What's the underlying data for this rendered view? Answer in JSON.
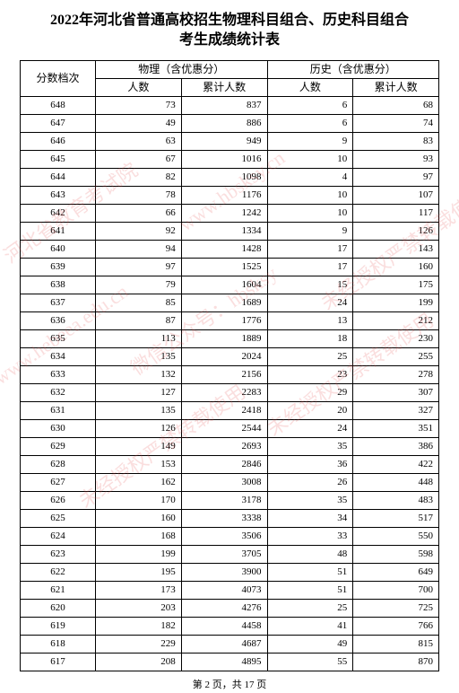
{
  "title_line1": "2022年河北省普通高校招生物理科目组合、历史科目组合",
  "title_line2": "考生成绩统计表",
  "headers": {
    "score": "分数档次",
    "physics": "物理（含优惠分）",
    "history": "历史（含优惠分）",
    "count": "人数",
    "cumulative": "累计人数"
  },
  "rows": [
    {
      "score": "648",
      "p_count": "73",
      "p_cum": "837",
      "h_count": "6",
      "h_cum": "68"
    },
    {
      "score": "647",
      "p_count": "49",
      "p_cum": "886",
      "h_count": "6",
      "h_cum": "74"
    },
    {
      "score": "646",
      "p_count": "63",
      "p_cum": "949",
      "h_count": "9",
      "h_cum": "83"
    },
    {
      "score": "645",
      "p_count": "67",
      "p_cum": "1016",
      "h_count": "10",
      "h_cum": "93"
    },
    {
      "score": "644",
      "p_count": "82",
      "p_cum": "1098",
      "h_count": "4",
      "h_cum": "97"
    },
    {
      "score": "643",
      "p_count": "78",
      "p_cum": "1176",
      "h_count": "10",
      "h_cum": "107"
    },
    {
      "score": "642",
      "p_count": "66",
      "p_cum": "1242",
      "h_count": "10",
      "h_cum": "117"
    },
    {
      "score": "641",
      "p_count": "92",
      "p_cum": "1334",
      "h_count": "9",
      "h_cum": "126"
    },
    {
      "score": "640",
      "p_count": "94",
      "p_cum": "1428",
      "h_count": "17",
      "h_cum": "143"
    },
    {
      "score": "639",
      "p_count": "97",
      "p_cum": "1525",
      "h_count": "17",
      "h_cum": "160"
    },
    {
      "score": "638",
      "p_count": "79",
      "p_cum": "1604",
      "h_count": "15",
      "h_cum": "175"
    },
    {
      "score": "637",
      "p_count": "85",
      "p_cum": "1689",
      "h_count": "24",
      "h_cum": "199"
    },
    {
      "score": "636",
      "p_count": "87",
      "p_cum": "1776",
      "h_count": "13",
      "h_cum": "212"
    },
    {
      "score": "635",
      "p_count": "113",
      "p_cum": "1889",
      "h_count": "18",
      "h_cum": "230"
    },
    {
      "score": "634",
      "p_count": "135",
      "p_cum": "2024",
      "h_count": "25",
      "h_cum": "255"
    },
    {
      "score": "633",
      "p_count": "132",
      "p_cum": "2156",
      "h_count": "23",
      "h_cum": "278"
    },
    {
      "score": "632",
      "p_count": "127",
      "p_cum": "2283",
      "h_count": "29",
      "h_cum": "307"
    },
    {
      "score": "631",
      "p_count": "135",
      "p_cum": "2418",
      "h_count": "20",
      "h_cum": "327"
    },
    {
      "score": "630",
      "p_count": "126",
      "p_cum": "2544",
      "h_count": "24",
      "h_cum": "351"
    },
    {
      "score": "629",
      "p_count": "149",
      "p_cum": "2693",
      "h_count": "35",
      "h_cum": "386"
    },
    {
      "score": "628",
      "p_count": "153",
      "p_cum": "2846",
      "h_count": "36",
      "h_cum": "422"
    },
    {
      "score": "627",
      "p_count": "162",
      "p_cum": "3008",
      "h_count": "26",
      "h_cum": "448"
    },
    {
      "score": "626",
      "p_count": "170",
      "p_cum": "3178",
      "h_count": "35",
      "h_cum": "483"
    },
    {
      "score": "625",
      "p_count": "160",
      "p_cum": "3338",
      "h_count": "34",
      "h_cum": "517"
    },
    {
      "score": "624",
      "p_count": "168",
      "p_cum": "3506",
      "h_count": "33",
      "h_cum": "550"
    },
    {
      "score": "623",
      "p_count": "199",
      "p_cum": "3705",
      "h_count": "48",
      "h_cum": "598"
    },
    {
      "score": "622",
      "p_count": "195",
      "p_cum": "3900",
      "h_count": "51",
      "h_cum": "649"
    },
    {
      "score": "621",
      "p_count": "173",
      "p_cum": "4073",
      "h_count": "51",
      "h_cum": "700"
    },
    {
      "score": "620",
      "p_count": "203",
      "p_cum": "4276",
      "h_count": "25",
      "h_cum": "725"
    },
    {
      "score": "619",
      "p_count": "182",
      "p_cum": "4458",
      "h_count": "41",
      "h_cum": "766"
    },
    {
      "score": "618",
      "p_count": "229",
      "p_cum": "4687",
      "h_count": "49",
      "h_cum": "815"
    },
    {
      "score": "617",
      "p_count": "208",
      "p_cum": "4895",
      "h_count": "55",
      "h_cum": "870"
    }
  ],
  "footer": "第 2 页，共 17 页",
  "watermarks": {
    "wm1": "河北省教育考试院",
    "wm2": "www.hebeea.edu.cn",
    "wm3": "www.hbsksy.cn",
    "wm4": "微信公众号：hbsksy",
    "wm5": "未经授权严禁转载使用",
    "wm6": "未经授权严禁转载使用",
    "wm7": "未经授权严禁转载使用"
  },
  "colors": {
    "background": "#ffffff",
    "border": "#000000",
    "text": "#000000",
    "watermark": "rgba(230,70,70,0.18)"
  }
}
